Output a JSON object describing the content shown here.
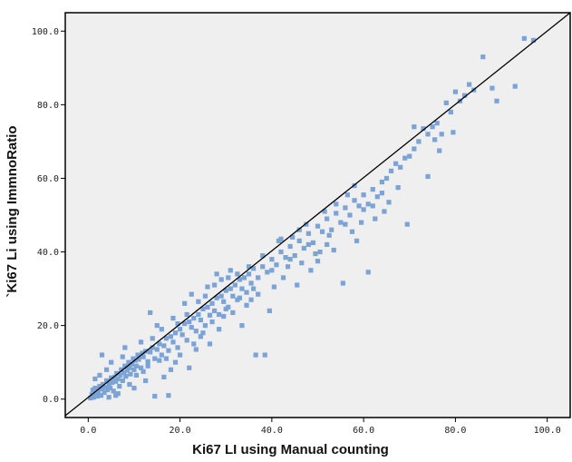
{
  "chart_data": {
    "type": "scatter",
    "title": "",
    "xlabel": "Ki67 LI using Manual counting",
    "ylabel": "`Ki67 Li using ImmnoRatio",
    "xlim": [
      -5,
      105
    ],
    "ylim": [
      -5,
      105
    ],
    "x_ticks": [
      "0.0",
      "20.0",
      "40.0",
      "60.0",
      "80.0",
      "100.0"
    ],
    "y_ticks": [
      "0.0",
      "20.0",
      "40.0",
      "60.0",
      "80.0",
      "100.0"
    ],
    "grid": false,
    "background_color": "#efefef",
    "marker_color": "#7ba3d6",
    "line_color": "#000000",
    "fit_line": {
      "x": [
        -5,
        105
      ],
      "y": [
        -4.5,
        105
      ]
    },
    "points": [
      {
        "x": 0.5,
        "y": 0.3
      },
      {
        "x": 0.8,
        "y": 1.2
      },
      {
        "x": 1.0,
        "y": 2.5
      },
      {
        "x": 1.2,
        "y": 0.5
      },
      {
        "x": 1.5,
        "y": 3.0
      },
      {
        "x": 1.8,
        "y": 1.5
      },
      {
        "x": 2.0,
        "y": 0.8
      },
      {
        "x": 2.2,
        "y": 2.0
      },
      {
        "x": 2.5,
        "y": 3.5
      },
      {
        "x": 2.8,
        "y": 1.0
      },
      {
        "x": 3.0,
        "y": 2.8
      },
      {
        "x": 3.2,
        "y": 4.0
      },
      {
        "x": 3.5,
        "y": 1.8
      },
      {
        "x": 3.8,
        "y": 3.2
      },
      {
        "x": 4.0,
        "y": 5.0
      },
      {
        "x": 4.2,
        "y": 2.5
      },
      {
        "x": 4.5,
        "y": 4.2
      },
      {
        "x": 4.8,
        "y": 3.0
      },
      {
        "x": 5.0,
        "y": 5.8
      },
      {
        "x": 5.2,
        "y": 4.5
      },
      {
        "x": 5.5,
        "y": 2.2
      },
      {
        "x": 5.8,
        "y": 6.0
      },
      {
        "x": 6.0,
        "y": 4.8
      },
      {
        "x": 6.2,
        "y": 7.0
      },
      {
        "x": 6.5,
        "y": 5.5
      },
      {
        "x": 6.8,
        "y": 3.5
      },
      {
        "x": 7.0,
        "y": 6.5
      },
      {
        "x": 7.2,
        "y": 8.0
      },
      {
        "x": 7.5,
        "y": 5.0
      },
      {
        "x": 7.8,
        "y": 7.2
      },
      {
        "x": 8.0,
        "y": 9.0
      },
      {
        "x": 8.2,
        "y": 6.2
      },
      {
        "x": 8.5,
        "y": 7.8
      },
      {
        "x": 8.8,
        "y": 10.0
      },
      {
        "x": 9.0,
        "y": 8.5
      },
      {
        "x": 9.2,
        "y": 6.8
      },
      {
        "x": 9.5,
        "y": 9.5
      },
      {
        "x": 9.8,
        "y": 11.0
      },
      {
        "x": 10.0,
        "y": 8.0
      },
      {
        "x": 10.2,
        "y": 10.5
      },
      {
        "x": 10.5,
        "y": 9.0
      },
      {
        "x": 10.8,
        "y": 12.0
      },
      {
        "x": 11.0,
        "y": 10.8
      },
      {
        "x": 11.5,
        "y": 8.5
      },
      {
        "x": 11.8,
        "y": 12.5
      },
      {
        "x": 12.0,
        "y": 11.5
      },
      {
        "x": 12.5,
        "y": 13.0
      },
      {
        "x": 13.0,
        "y": 10.2
      },
      {
        "x": 13.5,
        "y": 12.8
      },
      {
        "x": 14.0,
        "y": 14.0
      },
      {
        "x": 14.5,
        "y": 11.0
      },
      {
        "x": 15.0,
        "y": 13.5
      },
      {
        "x": 15.5,
        "y": 15.0
      },
      {
        "x": 16.0,
        "y": 12.0
      },
      {
        "x": 16.5,
        "y": 14.5
      },
      {
        "x": 17.0,
        "y": 16.5
      },
      {
        "x": 17.5,
        "y": 13.2
      },
      {
        "x": 18.0,
        "y": 17.0
      },
      {
        "x": 18.5,
        "y": 15.5
      },
      {
        "x": 19.0,
        "y": 18.0
      },
      {
        "x": 19.5,
        "y": 14.0
      },
      {
        "x": 20.0,
        "y": 19.0
      },
      {
        "x": 20.5,
        "y": 17.5
      },
      {
        "x": 21.0,
        "y": 20.5
      },
      {
        "x": 21.5,
        "y": 16.0
      },
      {
        "x": 22.0,
        "y": 21.0
      },
      {
        "x": 22.5,
        "y": 19.5
      },
      {
        "x": 23.0,
        "y": 22.0
      },
      {
        "x": 23.5,
        "y": 18.5
      },
      {
        "x": 24.0,
        "y": 23.0
      },
      {
        "x": 24.5,
        "y": 21.5
      },
      {
        "x": 25.0,
        "y": 24.5
      },
      {
        "x": 25.5,
        "y": 20.0
      },
      {
        "x": 26.0,
        "y": 25.0
      },
      {
        "x": 26.5,
        "y": 22.8
      },
      {
        "x": 27.0,
        "y": 26.0
      },
      {
        "x": 27.5,
        "y": 24.0
      },
      {
        "x": 28.0,
        "y": 27.5
      },
      {
        "x": 28.5,
        "y": 23.0
      },
      {
        "x": 29.0,
        "y": 28.0
      },
      {
        "x": 29.5,
        "y": 26.5
      },
      {
        "x": 30.0,
        "y": 29.5
      },
      {
        "x": 30.5,
        "y": 25.0
      },
      {
        "x": 31.0,
        "y": 30.0
      },
      {
        "x": 31.5,
        "y": 28.0
      },
      {
        "x": 32.0,
        "y": 31.0
      },
      {
        "x": 32.5,
        "y": 27.0
      },
      {
        "x": 33.0,
        "y": 32.5
      },
      {
        "x": 33.5,
        "y": 30.0
      },
      {
        "x": 34.0,
        "y": 33.0
      },
      {
        "x": 34.5,
        "y": 29.0
      },
      {
        "x": 35.0,
        "y": 34.0
      },
      {
        "x": 35.5,
        "y": 31.5
      },
      {
        "x": 36.0,
        "y": 35.5
      },
      {
        "x": 37.0,
        "y": 33.0
      },
      {
        "x": 38.0,
        "y": 36.0
      },
      {
        "x": 39.0,
        "y": 34.5
      },
      {
        "x": 40.0,
        "y": 38.0
      },
      {
        "x": 41.0,
        "y": 36.5
      },
      {
        "x": 42.0,
        "y": 40.0
      },
      {
        "x": 43.0,
        "y": 38.5
      },
      {
        "x": 44.0,
        "y": 41.5
      },
      {
        "x": 45.0,
        "y": 39.0
      },
      {
        "x": 46.0,
        "y": 43.0
      },
      {
        "x": 47.0,
        "y": 41.0
      },
      {
        "x": 48.0,
        "y": 45.0
      },
      {
        "x": 49.0,
        "y": 42.5
      },
      {
        "x": 50.0,
        "y": 47.0
      },
      {
        "x": 51.0,
        "y": 45.5
      },
      {
        "x": 52.0,
        "y": 49.0
      },
      {
        "x": 53.0,
        "y": 46.0
      },
      {
        "x": 54.0,
        "y": 50.5
      },
      {
        "x": 55.0,
        "y": 48.0
      },
      {
        "x": 56.0,
        "y": 52.0
      },
      {
        "x": 57.0,
        "y": 50.0
      },
      {
        "x": 58.0,
        "y": 54.0
      },
      {
        "x": 59.0,
        "y": 52.5
      },
      {
        "x": 60.0,
        "y": 55.5
      },
      {
        "x": 61.0,
        "y": 53.0
      },
      {
        "x": 62.0,
        "y": 57.0
      },
      {
        "x": 63.0,
        "y": 55.0
      },
      {
        "x": 64.0,
        "y": 59.0
      },
      {
        "x": 65.0,
        "y": 60.0
      },
      {
        "x": 66.0,
        "y": 62.0
      },
      {
        "x": 67.0,
        "y": 64.0
      },
      {
        "x": 68.0,
        "y": 63.0
      },
      {
        "x": 69.0,
        "y": 65.5
      },
      {
        "x": 70.0,
        "y": 66.0
      },
      {
        "x": 71.0,
        "y": 68.0
      },
      {
        "x": 72.0,
        "y": 70.0
      },
      {
        "x": 73.0,
        "y": 73.5
      },
      {
        "x": 74.0,
        "y": 72.0
      },
      {
        "x": 75.0,
        "y": 74.0
      },
      {
        "x": 75.5,
        "y": 70.5
      },
      {
        "x": 76.0,
        "y": 75.0
      },
      {
        "x": 77.0,
        "y": 72.0
      },
      {
        "x": 78.0,
        "y": 80.5
      },
      {
        "x": 79.0,
        "y": 78.0
      },
      {
        "x": 80.0,
        "y": 83.5
      },
      {
        "x": 81.0,
        "y": 81.0
      },
      {
        "x": 82.0,
        "y": 82.5
      },
      {
        "x": 83.0,
        "y": 85.5
      },
      {
        "x": 84.0,
        "y": 84.0
      },
      {
        "x": 86.0,
        "y": 93.0
      },
      {
        "x": 88.0,
        "y": 84.5
      },
      {
        "x": 89.0,
        "y": 81.0
      },
      {
        "x": 93.0,
        "y": 85.0
      },
      {
        "x": 95.0,
        "y": 98.0
      },
      {
        "x": 97.0,
        "y": 97.5
      },
      {
        "x": 3.0,
        "y": 12.0
      },
      {
        "x": 5.0,
        "y": 10.0
      },
      {
        "x": 6.5,
        "y": 1.5
      },
      {
        "x": 8.0,
        "y": 14.0
      },
      {
        "x": 10.0,
        "y": 3.0
      },
      {
        "x": 11.5,
        "y": 15.5
      },
      {
        "x": 12.5,
        "y": 5.0
      },
      {
        "x": 13.5,
        "y": 23.5
      },
      {
        "x": 14.5,
        "y": 0.8
      },
      {
        "x": 15.0,
        "y": 20.0
      },
      {
        "x": 16.5,
        "y": 6.0
      },
      {
        "x": 17.5,
        "y": 1.0
      },
      {
        "x": 18.5,
        "y": 22.0
      },
      {
        "x": 19.0,
        "y": 10.0
      },
      {
        "x": 20.0,
        "y": 12.0
      },
      {
        "x": 21.0,
        "y": 26.0
      },
      {
        "x": 22.0,
        "y": 8.5
      },
      {
        "x": 22.5,
        "y": 28.5
      },
      {
        "x": 23.5,
        "y": 13.5
      },
      {
        "x": 24.5,
        "y": 17.0
      },
      {
        "x": 25.5,
        "y": 28.0
      },
      {
        "x": 26.5,
        "y": 15.0
      },
      {
        "x": 27.5,
        "y": 31.0
      },
      {
        "x": 28.5,
        "y": 19.0
      },
      {
        "x": 29.5,
        "y": 22.5
      },
      {
        "x": 30.5,
        "y": 33.0
      },
      {
        "x": 31.5,
        "y": 23.5
      },
      {
        "x": 32.5,
        "y": 34.0
      },
      {
        "x": 33.5,
        "y": 20.0
      },
      {
        "x": 34.5,
        "y": 25.5
      },
      {
        "x": 35.5,
        "y": 27.0
      },
      {
        "x": 36.5,
        "y": 12.0
      },
      {
        "x": 37.0,
        "y": 28.5
      },
      {
        "x": 38.5,
        "y": 12.0
      },
      {
        "x": 39.5,
        "y": 24.0
      },
      {
        "x": 40.5,
        "y": 30.5
      },
      {
        "x": 41.5,
        "y": 43.0
      },
      {
        "x": 42.5,
        "y": 33.0
      },
      {
        "x": 43.5,
        "y": 36.0
      },
      {
        "x": 44.5,
        "y": 44.0
      },
      {
        "x": 45.5,
        "y": 31.0
      },
      {
        "x": 46.5,
        "y": 37.0
      },
      {
        "x": 47.5,
        "y": 47.5
      },
      {
        "x": 48.5,
        "y": 35.0
      },
      {
        "x": 49.5,
        "y": 39.5
      },
      {
        "x": 50.5,
        "y": 40.0
      },
      {
        "x": 51.5,
        "y": 51.0
      },
      {
        "x": 52.5,
        "y": 44.5
      },
      {
        "x": 53.5,
        "y": 40.5
      },
      {
        "x": 55.5,
        "y": 31.5
      },
      {
        "x": 56.5,
        "y": 55.5
      },
      {
        "x": 57.5,
        "y": 45.5
      },
      {
        "x": 58.5,
        "y": 43.0
      },
      {
        "x": 59.5,
        "y": 48.0
      },
      {
        "x": 61.0,
        "y": 34.5
      },
      {
        "x": 62.5,
        "y": 49.0
      },
      {
        "x": 64.5,
        "y": 51.0
      },
      {
        "x": 65.5,
        "y": 53.5
      },
      {
        "x": 67.5,
        "y": 57.5
      },
      {
        "x": 69.5,
        "y": 47.5
      },
      {
        "x": 71.0,
        "y": 74.0
      },
      {
        "x": 74.0,
        "y": 60.5
      },
      {
        "x": 76.5,
        "y": 67.5
      },
      {
        "x": 79.5,
        "y": 72.5
      },
      {
        "x": 1.5,
        "y": 5.5
      },
      {
        "x": 2.5,
        "y": 6.5
      },
      {
        "x": 4.0,
        "y": 8.0
      },
      {
        "x": 4.5,
        "y": 0.5
      },
      {
        "x": 6.0,
        "y": 1.0
      },
      {
        "x": 7.5,
        "y": 11.5
      },
      {
        "x": 9.0,
        "y": 4.0
      },
      {
        "x": 10.5,
        "y": 6.5
      },
      {
        "x": 12.0,
        "y": 7.5
      },
      {
        "x": 13.0,
        "y": 9.0
      },
      {
        "x": 14.0,
        "y": 16.5
      },
      {
        "x": 15.5,
        "y": 10.5
      },
      {
        "x": 16.0,
        "y": 19.0
      },
      {
        "x": 17.0,
        "y": 11.0
      },
      {
        "x": 18.0,
        "y": 8.0
      },
      {
        "x": 19.5,
        "y": 20.5
      },
      {
        "x": 21.5,
        "y": 23.0
      },
      {
        "x": 23.0,
        "y": 15.0
      },
      {
        "x": 24.0,
        "y": 26.5
      },
      {
        "x": 25.0,
        "y": 18.0
      },
      {
        "x": 26.0,
        "y": 30.5
      },
      {
        "x": 27.0,
        "y": 21.0
      },
      {
        "x": 28.0,
        "y": 34.0
      },
      {
        "x": 29.0,
        "y": 32.5
      },
      {
        "x": 30.0,
        "y": 24.5
      },
      {
        "x": 31.0,
        "y": 35.0
      },
      {
        "x": 33.0,
        "y": 27.5
      },
      {
        "x": 35.0,
        "y": 36.0
      },
      {
        "x": 36.0,
        "y": 30.0
      },
      {
        "x": 38.0,
        "y": 39.0
      },
      {
        "x": 40.0,
        "y": 35.0
      },
      {
        "x": 42.0,
        "y": 43.5
      },
      {
        "x": 44.0,
        "y": 38.0
      },
      {
        "x": 46.0,
        "y": 46.0
      },
      {
        "x": 48.0,
        "y": 42.0
      },
      {
        "x": 50.0,
        "y": 37.5
      },
      {
        "x": 52.0,
        "y": 42.0
      },
      {
        "x": 54.0,
        "y": 53.0
      },
      {
        "x": 56.0,
        "y": 47.5
      },
      {
        "x": 58.0,
        "y": 58.0
      },
      {
        "x": 60.0,
        "y": 51.5
      },
      {
        "x": 62.0,
        "y": 52.5
      },
      {
        "x": 64.0,
        "y": 56.0
      }
    ]
  }
}
